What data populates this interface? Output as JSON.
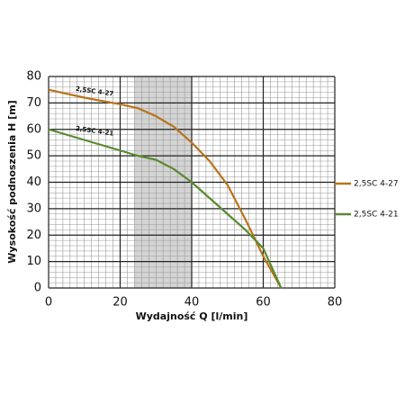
{
  "chart_data": {
    "type": "line",
    "x_label": "Wydajność Q [l/min]",
    "y_label": "Wysokość podnoszenia H [m]",
    "xlim": [
      0,
      80
    ],
    "xticks": [
      0,
      20,
      40,
      60,
      80
    ],
    "ylim": [
      0,
      80
    ],
    "yticks": [
      0,
      10,
      20,
      30,
      40,
      50,
      60,
      70,
      80
    ],
    "grid": true,
    "shaded_x_range": [
      24,
      40
    ],
    "legend": "right",
    "x": [
      0,
      10,
      20,
      25,
      30,
      35,
      40,
      45,
      50,
      55,
      60,
      65
    ],
    "series": [
      {
        "name": "2,5SC 4-27",
        "color": "#b8741a",
        "values": [
          75,
          72,
          69.5,
          68,
          65,
          61,
          55,
          48,
          39,
          26,
          12,
          0
        ]
      },
      {
        "name": "2,5SC 4-21",
        "color": "#5a8a32",
        "values": [
          60,
          56,
          52,
          50,
          48.5,
          45,
          40,
          34,
          28,
          22,
          15,
          0
        ]
      }
    ]
  }
}
